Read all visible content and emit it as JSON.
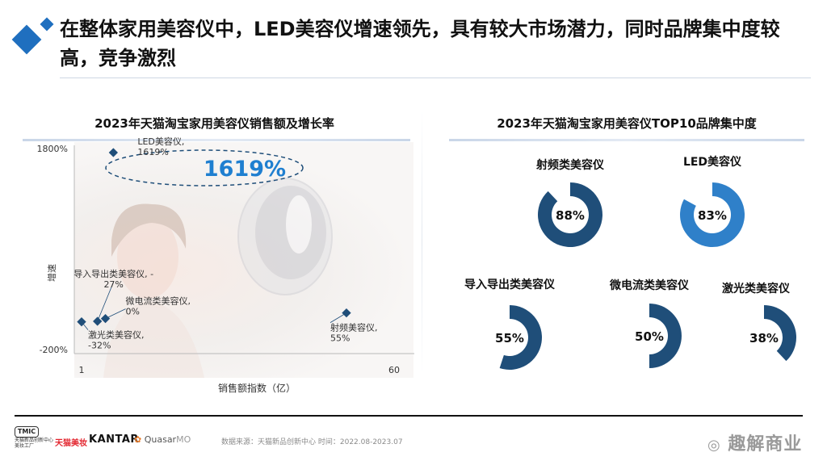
{
  "title": "在整体家用美容仪中，LED美容仪增速领先，具有较大市场潜力，同时品牌集中度较高，竞争激烈",
  "left_chart": {
    "title": "2023年天猫淘宝家用美容仪销售额及增长率",
    "xlabel": "销售额指数（亿）",
    "ylabel": "增速",
    "y_top_label": "1800%",
    "y_bottom_label": "-200%",
    "x_left_label": "1",
    "x_right_label": "60",
    "highlight": "1619%"
  },
  "chart_data": [
    {
      "type": "scatter",
      "title": "2023年天猫淘宝家用美容仪销售额及增长率",
      "xlabel": "销售额指数（亿）",
      "ylabel": "增速",
      "xlim": [
        1,
        60
      ],
      "ylim": [
        -200,
        1800
      ],
      "points": [
        {
          "name": "LED美容仪",
          "x": 7,
          "y": 1619,
          "label_lines": [
            "LED美容仪,",
            "1619%"
          ]
        },
        {
          "name": "导入导出类美容仪",
          "x": 4,
          "y": -27,
          "label_lines": [
            "导入导出类美容仪, -",
            "27%"
          ]
        },
        {
          "name": "微电流类美容仪",
          "x": 5.5,
          "y": 0,
          "label_lines": [
            "微电流类美容仪,",
            "0%"
          ]
        },
        {
          "name": "激光类美容仪",
          "x": 1,
          "y": -32,
          "label_lines": [
            "激光类美容仪,",
            "-32%"
          ]
        },
        {
          "name": "射频美容仪",
          "x": 51,
          "y": 55,
          "label_lines": [
            "射频美容仪,",
            "55%"
          ]
        }
      ]
    },
    {
      "type": "pie",
      "title": "2023年天猫淘宝家用美容仪TOP10品牌集中度",
      "series": [
        {
          "name": "射频类美容仪",
          "value": 88,
          "label": "88%"
        },
        {
          "name": "LED美容仪",
          "value": 83,
          "label": "83%"
        },
        {
          "name": "导入导出类美容仪",
          "value": 55,
          "label": "55%"
        },
        {
          "name": "微电流类美容仪",
          "value": 50,
          "label": "50%"
        },
        {
          "name": "激光类美容仪",
          "value": 38,
          "label": "38%"
        }
      ]
    }
  ],
  "right_chart": {
    "title": "2023年天猫淘宝家用美容仪TOP10品牌集中度"
  },
  "colors": {
    "dark_blue": "#1f4e79",
    "bright_blue": "#1f7fd0",
    "accent": "#2f80c9"
  },
  "footer": {
    "logo_tmic": "TMIC",
    "logo_tmic_sub": "天猫新品创新中心",
    "logo_tmic_sub2": "美妆工厂",
    "logo_tmall": "天猫美妆",
    "logo_kantar": "KANTAR",
    "logo_quasar": "Quasar",
    "logo_quasar_suffix": "MO",
    "source": "数据来源：天猫新品创新中心 时间：2022.08-2023.07",
    "watermark": "趣解商业"
  }
}
